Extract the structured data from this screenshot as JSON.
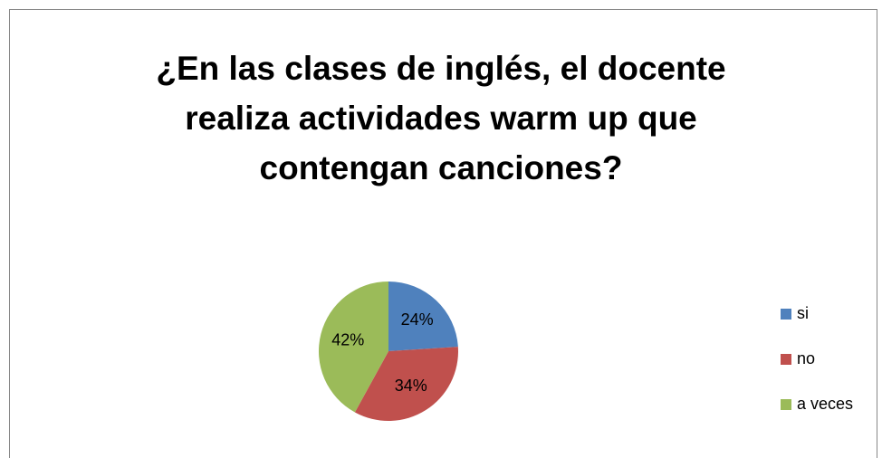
{
  "chart_data": {
    "type": "pie",
    "title": "¿En las clases de inglés, el docente\nrealiza actividades warm up que\ncontengan canciones?",
    "categories": [
      "si",
      "no",
      "a veces"
    ],
    "values": [
      24,
      34,
      42
    ],
    "value_labels": [
      "24%",
      "34%",
      "42%"
    ],
    "colors": [
      "#4f81bd",
      "#c0504d",
      "#9bbb59"
    ],
    "legend": "right"
  }
}
